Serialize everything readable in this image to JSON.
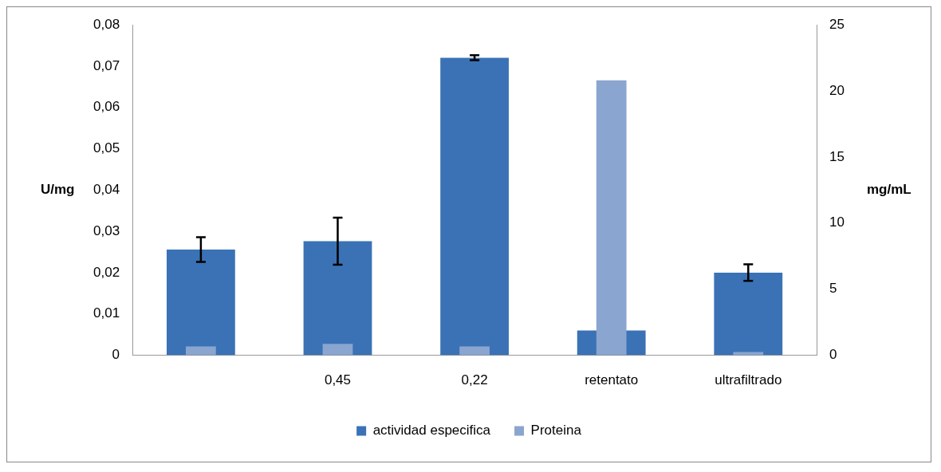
{
  "chart_data": {
    "type": "bar",
    "ylabel": "U/mg",
    "y2label": "mg/mL",
    "categories": [
      null,
      "0,45",
      "0,22",
      "retentato",
      "ultrafiltrado"
    ],
    "series": [
      {
        "name": "actividad especifica",
        "color": "#3a72b5",
        "values": [
          0.0256,
          0.0276,
          0.072,
          0.006,
          0.02
        ],
        "errors": [
          0.003,
          0.0057,
          0.0006,
          null,
          0.002
        ]
      },
      {
        "name": "Proteina",
        "color": "#8aa5cf",
        "axis": "y2",
        "values": [
          0.67,
          0.86,
          0.67,
          20.8,
          0.25
        ]
      }
    ],
    "ylim": [
      0,
      0.08
    ],
    "yticks": [
      0,
      {
        "value": 0.01,
        "label": "0,01"
      },
      {
        "value": 0.02,
        "label": "0,02"
      },
      {
        "value": 0.03,
        "label": "0,03"
      },
      {
        "value": 0.04,
        "label": "0,04"
      },
      {
        "value": 0.05,
        "label": "0,05"
      },
      {
        "value": 0.06,
        "label": "0,06"
      },
      {
        "value": 0.07,
        "label": "0,07"
      },
      {
        "value": 0.08,
        "label": "0,08"
      }
    ],
    "y2lim": [
      0,
      25
    ],
    "y2ticks": [
      0,
      5,
      10,
      15,
      20,
      25
    ],
    "grid": false,
    "legend": "bottom"
  }
}
